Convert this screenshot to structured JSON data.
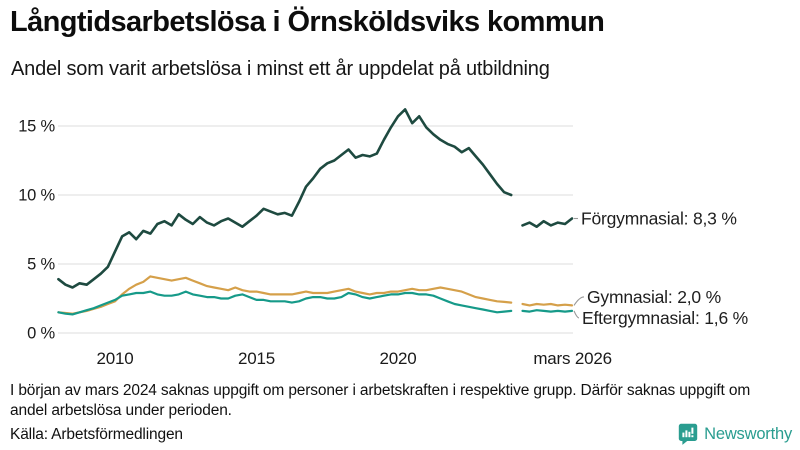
{
  "header": {
    "title": "Långtidsarbetslösa i Örnsköldsviks kommun",
    "subtitle": "Andel som varit arbetslösa i minst ett år uppdelat på utbildning"
  },
  "footer": {
    "note": "I början av mars 2024 saknas uppgift om personer i arbetskraften i respektive grupp. Därför saknas uppgift om andel arbetslösa under perioden.",
    "source": "Källa: Arbetsförmedlingen",
    "brand": "Newsworthy"
  },
  "colors": {
    "forgymnasial": "#1e4a40",
    "gymnasial": "#d5a04a",
    "eftergymnasial": "#169a89",
    "brand": "#2a9d90",
    "grid": "#e4e4e4",
    "text": "#1a1a1a",
    "label_text": "#1f1f1f",
    "connector": "#999999"
  },
  "chart_data": {
    "type": "line",
    "title": "",
    "xlabel": "",
    "ylabel": "",
    "unit": "%",
    "grid": true,
    "legend_position": "right-of-line-end",
    "xlim": [
      2008,
      2026.35
    ],
    "ylim": [
      0,
      16.5
    ],
    "y_ticks": [
      {
        "v": 15,
        "label": "15 %"
      },
      {
        "v": 10,
        "label": "10 %"
      },
      {
        "v": 5,
        "label": "5 %"
      },
      {
        "v": 0,
        "label": "0 %"
      }
    ],
    "x_ticks": [
      {
        "t": 2010,
        "label": "2010"
      },
      {
        "t": 2015,
        "label": "2015"
      },
      {
        "t": 2020,
        "label": "2020"
      },
      {
        "t": 2026.17,
        "label": "mars 2026"
      }
    ],
    "series": [
      {
        "name": "Förgymnasial",
        "label": "Förgymnasial: 8,3 %",
        "end_value_label": "8,3 %",
        "color": "#1e4a40",
        "segments": [
          {
            "start": 2008.0,
            "step": 0.25,
            "values": [
              3.9,
              3.5,
              3.3,
              3.6,
              3.5,
              3.9,
              4.3,
              4.8,
              5.9,
              7.0,
              7.3,
              6.8,
              7.4,
              7.2,
              7.9,
              8.1,
              7.8,
              8.6,
              8.2,
              7.9,
              8.4,
              8.0,
              7.8,
              8.1,
              8.3,
              8.0,
              7.7,
              8.1,
              8.5,
              9.0,
              8.8,
              8.6,
              8.7,
              8.5,
              9.5,
              10.6,
              11.2,
              11.9,
              12.3,
              12.5,
              12.9,
              13.3,
              12.7,
              12.9,
              12.8,
              13.0,
              14.0,
              14.9,
              15.7,
              16.2,
              15.2,
              15.7,
              14.9,
              14.4,
              14.0,
              13.7,
              13.5,
              13.1,
              13.4,
              12.8,
              12.2,
              11.5,
              10.8,
              10.2,
              10.0
            ]
          },
          {
            "start": 2024.4,
            "step": 0.25,
            "values": [
              7.8,
              8.0,
              7.7,
              8.1,
              7.8,
              8.0,
              7.9,
              8.3
            ]
          }
        ]
      },
      {
        "name": "Gymnasial",
        "label": "Gymnasial: 2,0 %",
        "end_value_label": "2,0 %",
        "color": "#d5a04a",
        "segments": [
          {
            "start": 2008.0,
            "step": 0.25,
            "values": [
              1.5,
              1.45,
              1.4,
              1.5,
              1.6,
              1.75,
              1.9,
              2.1,
              2.3,
              2.8,
              3.2,
              3.5,
              3.7,
              4.1,
              4.0,
              3.9,
              3.8,
              3.9,
              4.0,
              3.8,
              3.6,
              3.4,
              3.3,
              3.2,
              3.1,
              3.3,
              3.1,
              3.0,
              3.0,
              2.9,
              2.8,
              2.8,
              2.8,
              2.8,
              2.9,
              3.0,
              2.9,
              2.9,
              2.9,
              3.0,
              3.1,
              3.2,
              3.0,
              2.9,
              2.8,
              2.9,
              2.9,
              3.0,
              3.0,
              3.1,
              3.2,
              3.1,
              3.1,
              3.2,
              3.3,
              3.2,
              3.1,
              3.0,
              2.8,
              2.6,
              2.5,
              2.4,
              2.3,
              2.25,
              2.2
            ]
          },
          {
            "start": 2024.4,
            "step": 0.25,
            "values": [
              2.1,
              2.0,
              2.1,
              2.05,
              2.1,
              2.0,
              2.05,
              2.0
            ]
          }
        ]
      },
      {
        "name": "Eftergymnasial",
        "label": "Eftergymnasial: 1,6 %",
        "end_value_label": "1,6 %",
        "color": "#169a89",
        "segments": [
          {
            "start": 2008.0,
            "step": 0.25,
            "values": [
              1.5,
              1.4,
              1.35,
              1.5,
              1.65,
              1.8,
              2.0,
              2.2,
              2.4,
              2.7,
              2.8,
              2.9,
              2.9,
              3.0,
              2.8,
              2.7,
              2.7,
              2.8,
              3.0,
              2.8,
              2.7,
              2.6,
              2.6,
              2.5,
              2.5,
              2.7,
              2.8,
              2.6,
              2.4,
              2.4,
              2.3,
              2.3,
              2.3,
              2.2,
              2.3,
              2.5,
              2.6,
              2.6,
              2.5,
              2.5,
              2.6,
              2.9,
              2.8,
              2.6,
              2.5,
              2.6,
              2.7,
              2.8,
              2.8,
              2.9,
              2.9,
              2.8,
              2.8,
              2.7,
              2.5,
              2.3,
              2.1,
              2.0,
              1.9,
              1.8,
              1.7,
              1.6,
              1.5,
              1.55,
              1.6
            ]
          },
          {
            "start": 2024.4,
            "step": 0.25,
            "values": [
              1.6,
              1.55,
              1.65,
              1.6,
              1.55,
              1.6,
              1.55,
              1.6
            ]
          }
        ]
      }
    ]
  }
}
